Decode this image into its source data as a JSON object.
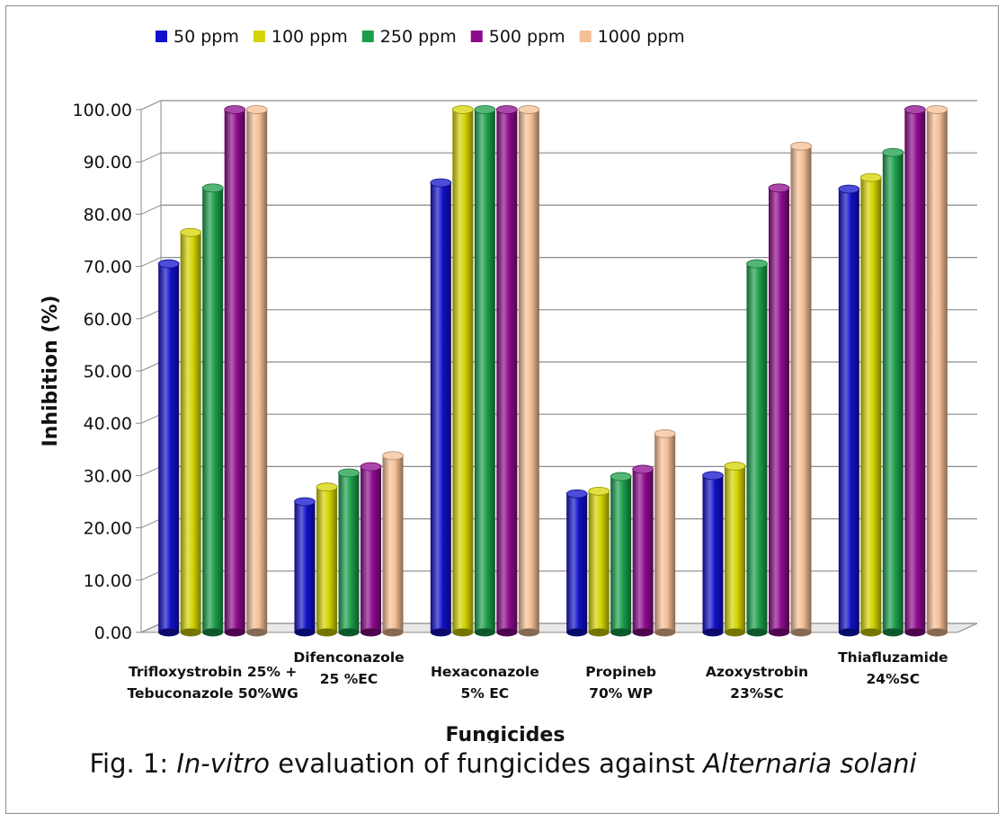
{
  "chart_data": {
    "type": "bar",
    "ylabel": "Inhibition (%)",
    "xlabel": "Fungicides",
    "ylim": [
      0,
      100
    ],
    "yticks": [
      "0.00",
      "10.00",
      "20.00",
      "30.00",
      "40.00",
      "50.00",
      "60.00",
      "70.00",
      "80.00",
      "90.00",
      "100.00"
    ],
    "grid": true,
    "legend_position": "top",
    "categories": [
      [
        "Trifloxystrobin 25% +",
        "Tebuconazole 50%WG"
      ],
      [
        "Difenconazole",
        "25 %EC"
      ],
      [
        "Hexaconazole",
        "5% EC"
      ],
      [
        "Propineb",
        "70% WP"
      ],
      [
        "Azoxystrobin",
        "23%SC"
      ],
      [
        "Thiafluzamide",
        "24%SC"
      ]
    ],
    "series": [
      {
        "name": "50 ppm",
        "color": "#1010c8",
        "values": [
          70.5,
          25.0,
          86.0,
          26.5,
          30.0,
          84.8
        ]
      },
      {
        "name": "100 ppm",
        "color": "#d4d400",
        "values": [
          76.5,
          27.8,
          100.0,
          27.0,
          31.8,
          87.0
        ]
      },
      {
        "name": "250 ppm",
        "color": "#1a9e4a",
        "values": [
          85.0,
          30.5,
          100.0,
          29.8,
          70.5,
          91.8
        ]
      },
      {
        "name": "500 ppm",
        "color": "#8c0a8c",
        "values": [
          100.0,
          31.7,
          100.0,
          31.2,
          85.0,
          100.0
        ]
      },
      {
        "name": "1000 ppm",
        "color": "#f6bf94",
        "values": [
          100.0,
          33.8,
          100.0,
          38.0,
          93.0,
          100.0
        ]
      }
    ]
  },
  "caption": {
    "prefix": "Fig. 1: ",
    "italic1": "In-vitro",
    "middle": " evaluation of fungicides against ",
    "italic2": "Alternaria solani"
  }
}
